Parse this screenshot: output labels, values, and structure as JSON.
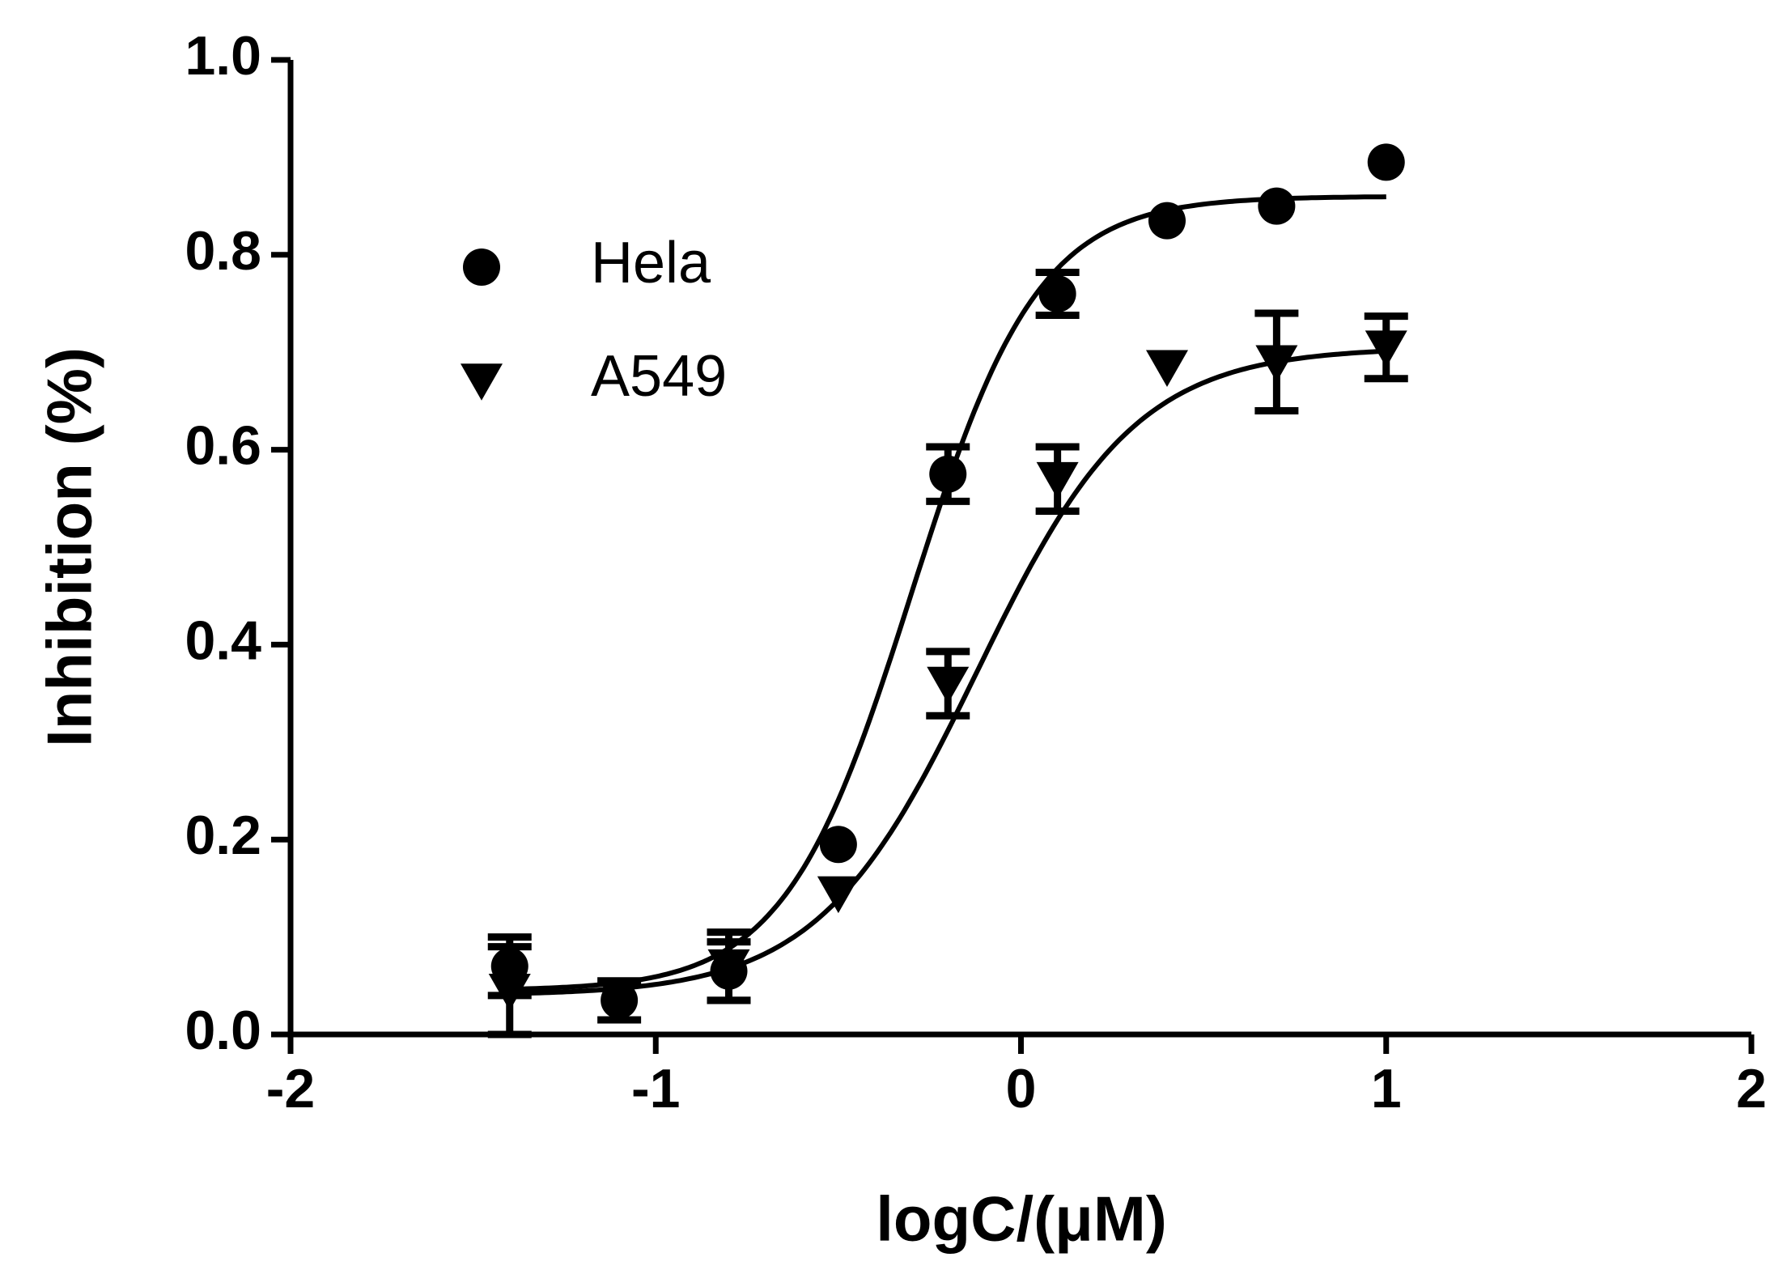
{
  "chart_data": {
    "type": "scatter",
    "x_label": "logC/(μM)",
    "y_label": "Inhibition (%)",
    "xlim": [
      -2,
      2
    ],
    "xticks": [
      -2,
      -1,
      0,
      1,
      2
    ],
    "ylim": [
      0,
      1
    ],
    "yticks": [
      {
        "value": 0,
        "label": "0.0"
      },
      0.2,
      0.4,
      0.6,
      0.8,
      {
        "value": 1,
        "label": "1.0"
      }
    ],
    "legend": "upper left",
    "series": [
      {
        "name": "Hela",
        "color": "#000000",
        "marker": "circle",
        "x": [
          -1.4,
          -1.1,
          -0.8,
          -0.5,
          -0.2,
          0.1,
          0.4,
          0.7,
          1.0
        ],
        "values": [
          0.07,
          0.035,
          0.065,
          0.195,
          0.575,
          0.76,
          0.835,
          0.85,
          0.895
        ],
        "errors": [
          0.03,
          0.02,
          0.03,
          null,
          0.028,
          0.022,
          null,
          null,
          null
        ],
        "fit": {
          "bottom": 0.045,
          "top": 0.86,
          "logEC50": -0.3,
          "hill": 2.5
        }
      },
      {
        "name": "A549",
        "color": "#000000",
        "marker": "triangle-down",
        "x": [
          -1.4,
          -1.1,
          -0.8,
          -0.5,
          -0.2,
          0.1,
          0.4,
          0.7,
          1.0
        ],
        "values": [
          0.045,
          0.04,
          0.07,
          0.145,
          0.36,
          0.57,
          0.685,
          0.69,
          0.705
        ],
        "errors": [
          0.045,
          null,
          0.035,
          null,
          0.033,
          0.033,
          null,
          0.05,
          0.032
        ],
        "fit": {
          "bottom": 0.04,
          "top": 0.705,
          "logEC50": -0.12,
          "hill": 2.0
        }
      }
    ]
  }
}
